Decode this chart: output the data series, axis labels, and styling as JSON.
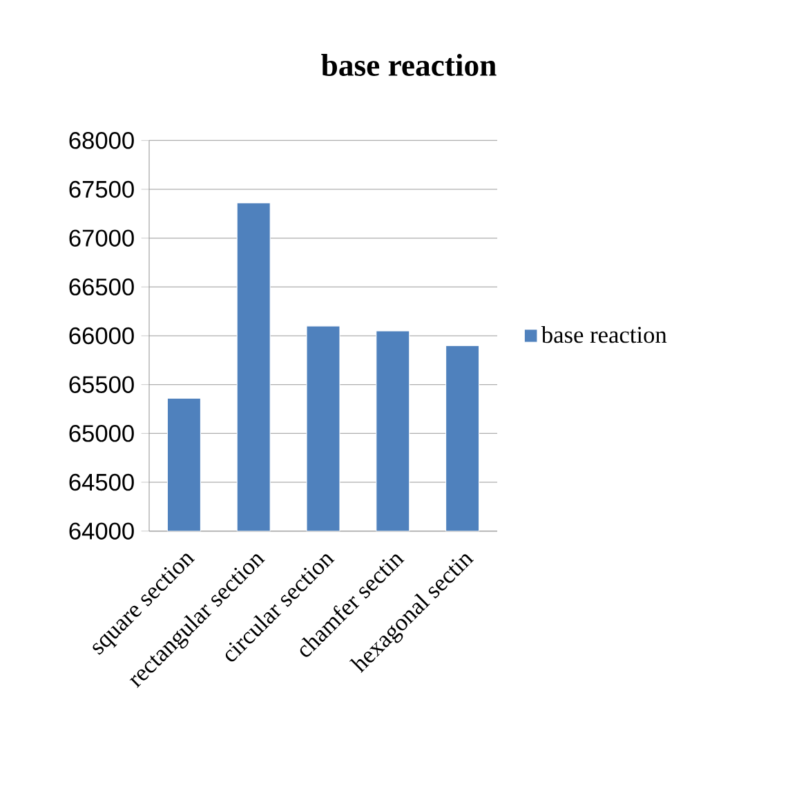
{
  "chart_data": {
    "type": "bar",
    "title": "base reaction",
    "categories": [
      "square section",
      "rectangular section",
      "circular section",
      "chamfer sectin",
      "hexagonal sectin"
    ],
    "series": [
      {
        "name": "base reaction",
        "color": "#4f81bd",
        "values": [
          65360,
          67360,
          66100,
          66050,
          65900
        ]
      }
    ],
    "ylim": [
      64000,
      68000
    ],
    "yticks": [
      64000,
      64500,
      65000,
      65500,
      66000,
      66500,
      67000,
      67500,
      68000
    ],
    "grid": "y",
    "legend": "right"
  }
}
